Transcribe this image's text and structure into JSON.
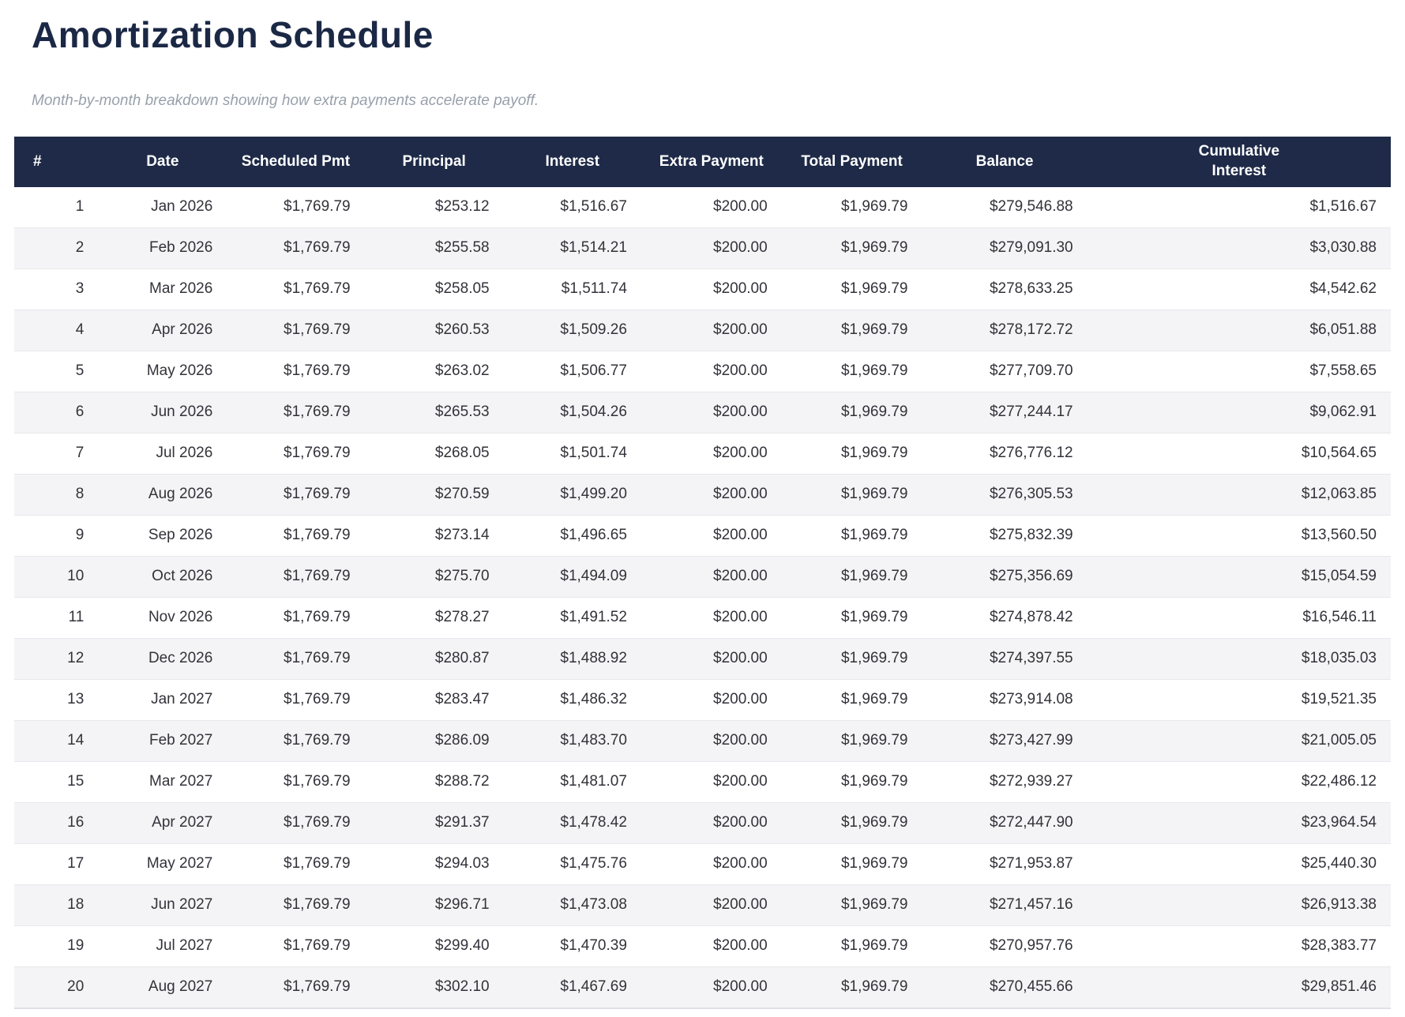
{
  "page": {
    "title": "Amortization Schedule",
    "subtitle": "Month-by-month breakdown showing how extra payments accelerate payoff."
  },
  "table": {
    "columns": [
      {
        "key": "num",
        "label": "#"
      },
      {
        "key": "date",
        "label": "Date"
      },
      {
        "key": "scheduled_pmt",
        "label": "Scheduled Pmt"
      },
      {
        "key": "principal",
        "label": "Principal"
      },
      {
        "key": "interest",
        "label": "Interest"
      },
      {
        "key": "extra_payment",
        "label": "Extra Payment"
      },
      {
        "key": "total_payment",
        "label": "Total Payment"
      },
      {
        "key": "balance",
        "label": "Balance"
      },
      {
        "key": "cumulative_interest",
        "label": "Cumulative Interest"
      }
    ],
    "rows": [
      [
        "1",
        "Jan 2026",
        "$1,769.79",
        "$253.12",
        "$1,516.67",
        "$200.00",
        "$1,969.79",
        "$279,546.88",
        "$1,516.67"
      ],
      [
        "2",
        "Feb 2026",
        "$1,769.79",
        "$255.58",
        "$1,514.21",
        "$200.00",
        "$1,969.79",
        "$279,091.30",
        "$3,030.88"
      ],
      [
        "3",
        "Mar 2026",
        "$1,769.79",
        "$258.05",
        "$1,511.74",
        "$200.00",
        "$1,969.79",
        "$278,633.25",
        "$4,542.62"
      ],
      [
        "4",
        "Apr 2026",
        "$1,769.79",
        "$260.53",
        "$1,509.26",
        "$200.00",
        "$1,969.79",
        "$278,172.72",
        "$6,051.88"
      ],
      [
        "5",
        "May 2026",
        "$1,769.79",
        "$263.02",
        "$1,506.77",
        "$200.00",
        "$1,969.79",
        "$277,709.70",
        "$7,558.65"
      ],
      [
        "6",
        "Jun 2026",
        "$1,769.79",
        "$265.53",
        "$1,504.26",
        "$200.00",
        "$1,969.79",
        "$277,244.17",
        "$9,062.91"
      ],
      [
        "7",
        "Jul 2026",
        "$1,769.79",
        "$268.05",
        "$1,501.74",
        "$200.00",
        "$1,969.79",
        "$276,776.12",
        "$10,564.65"
      ],
      [
        "8",
        "Aug 2026",
        "$1,769.79",
        "$270.59",
        "$1,499.20",
        "$200.00",
        "$1,969.79",
        "$276,305.53",
        "$12,063.85"
      ],
      [
        "9",
        "Sep 2026",
        "$1,769.79",
        "$273.14",
        "$1,496.65",
        "$200.00",
        "$1,969.79",
        "$275,832.39",
        "$13,560.50"
      ],
      [
        "10",
        "Oct 2026",
        "$1,769.79",
        "$275.70",
        "$1,494.09",
        "$200.00",
        "$1,969.79",
        "$275,356.69",
        "$15,054.59"
      ],
      [
        "11",
        "Nov 2026",
        "$1,769.79",
        "$278.27",
        "$1,491.52",
        "$200.00",
        "$1,969.79",
        "$274,878.42",
        "$16,546.11"
      ],
      [
        "12",
        "Dec 2026",
        "$1,769.79",
        "$280.87",
        "$1,488.92",
        "$200.00",
        "$1,969.79",
        "$274,397.55",
        "$18,035.03"
      ],
      [
        "13",
        "Jan 2027",
        "$1,769.79",
        "$283.47",
        "$1,486.32",
        "$200.00",
        "$1,969.79",
        "$273,914.08",
        "$19,521.35"
      ],
      [
        "14",
        "Feb 2027",
        "$1,769.79",
        "$286.09",
        "$1,483.70",
        "$200.00",
        "$1,969.79",
        "$273,427.99",
        "$21,005.05"
      ],
      [
        "15",
        "Mar 2027",
        "$1,769.79",
        "$288.72",
        "$1,481.07",
        "$200.00",
        "$1,969.79",
        "$272,939.27",
        "$22,486.12"
      ],
      [
        "16",
        "Apr 2027",
        "$1,769.79",
        "$291.37",
        "$1,478.42",
        "$200.00",
        "$1,969.79",
        "$272,447.90",
        "$23,964.54"
      ],
      [
        "17",
        "May 2027",
        "$1,769.79",
        "$294.03",
        "$1,475.76",
        "$200.00",
        "$1,969.79",
        "$271,953.87",
        "$25,440.30"
      ],
      [
        "18",
        "Jun 2027",
        "$1,769.79",
        "$296.71",
        "$1,473.08",
        "$200.00",
        "$1,969.79",
        "$271,457.16",
        "$26,913.38"
      ],
      [
        "19",
        "Jul 2027",
        "$1,769.79",
        "$299.40",
        "$1,470.39",
        "$200.00",
        "$1,969.79",
        "$270,957.76",
        "$28,383.77"
      ],
      [
        "20",
        "Aug 2027",
        "$1,769.79",
        "$302.10",
        "$1,467.69",
        "$200.00",
        "$1,969.79",
        "$270,455.66",
        "$29,851.46"
      ]
    ],
    "colors": {
      "header_bg": "#1e2a47",
      "header_text": "#ffffff",
      "row_alt_bg": "#f4f4f6",
      "row_border": "#e8e8ec",
      "title_text": "#1b2845",
      "subtitle_text": "#98a0ab",
      "body_text": "#32323a"
    }
  }
}
